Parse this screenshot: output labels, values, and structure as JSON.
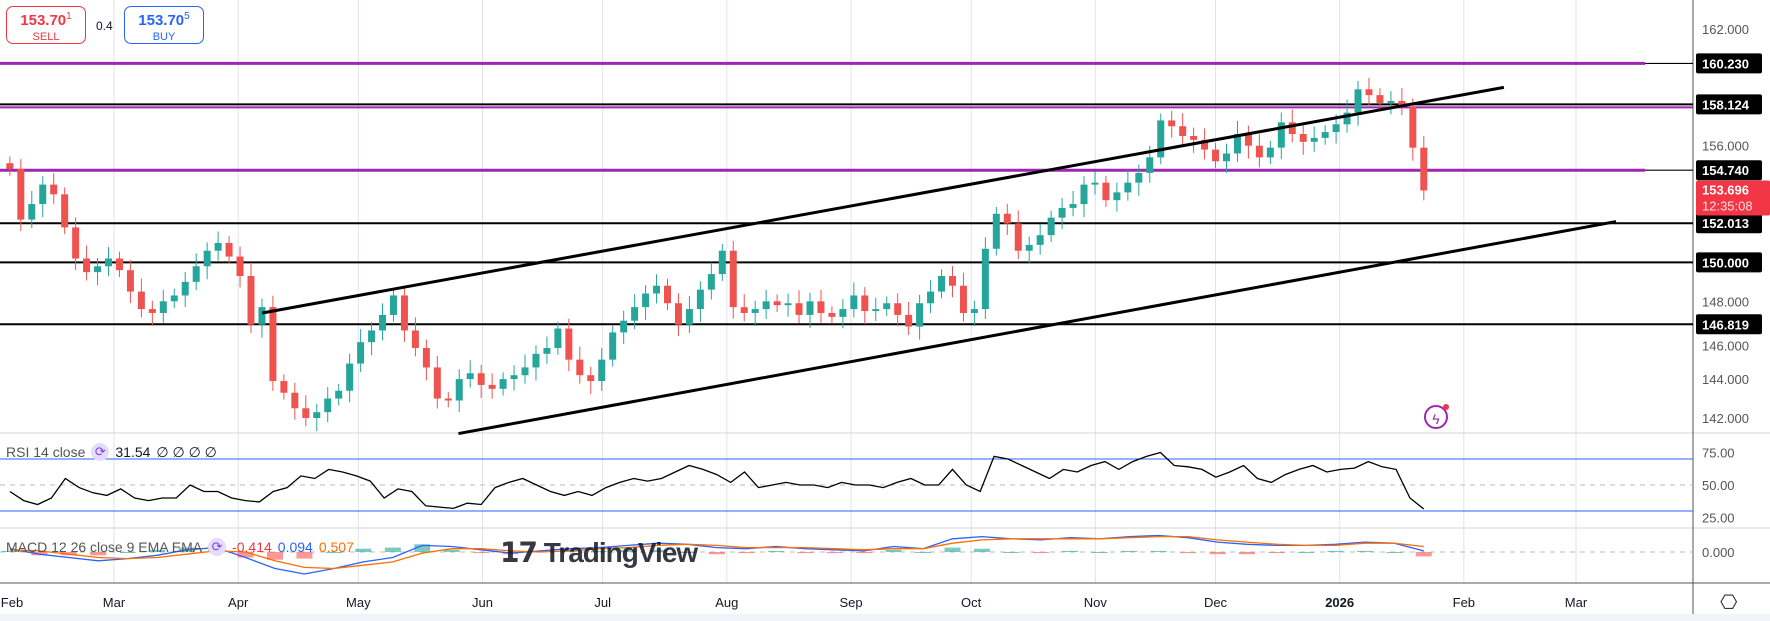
{
  "quote": {
    "sell_price": "153.70",
    "sell_sup": "1",
    "sell_label": "SELL",
    "spread": "0.4",
    "buy_price": "153.70",
    "buy_sup": "5",
    "buy_label": "BUY"
  },
  "rsi_legend": {
    "label": "RSI 14 close",
    "value": "31.54",
    "extras": "∅ ∅ ∅ ∅"
  },
  "macd_legend": {
    "label": "MACD 12 26 close 9 EMA EMA",
    "hist": "-0.414",
    "macd": "0.094",
    "signal": "0.507"
  },
  "logo": "TradingView",
  "colors": {
    "up": "#26a69a",
    "down": "#ef5350",
    "level_purple": "#9c27b0",
    "rsi_band": "#2962ff",
    "macd": "#2962ff",
    "signal": "#ff6d00",
    "last_price": "#f23645"
  },
  "chart_data": {
    "type": "candlestick",
    "date_range": [
      "2025-02-03",
      "2026-01-22"
    ],
    "price_axis": {
      "ticks": [
        "162.000",
        "156.000",
        "148.000",
        "146.000",
        "144.000",
        "142.000"
      ],
      "range": [
        141,
        163
      ]
    },
    "time_axis": [
      {
        "label": "Feb",
        "date": "2025-02-01"
      },
      {
        "label": "Mar",
        "date": "2025-03-01"
      },
      {
        "label": "Apr",
        "date": "2025-04-01"
      },
      {
        "label": "May",
        "date": "2025-05-01"
      },
      {
        "label": "Jun",
        "date": "2025-06-01"
      },
      {
        "label": "Jul",
        "date": "2025-07-01"
      },
      {
        "label": "Aug",
        "date": "2025-08-01"
      },
      {
        "label": "Sep",
        "date": "2025-09-01"
      },
      {
        "label": "Oct",
        "date": "2025-10-01"
      },
      {
        "label": "Nov",
        "date": "2025-11-01"
      },
      {
        "label": "Dec",
        "date": "2025-12-01"
      },
      {
        "label": "2026",
        "date": "2026-01-01",
        "bold": true
      },
      {
        "label": "Feb",
        "date": "2026-02-01"
      },
      {
        "label": "Mar",
        "date": "2026-03-01"
      }
    ],
    "closes": [
      154.8,
      152.2,
      153.0,
      154.0,
      153.5,
      151.8,
      150.2,
      149.5,
      149.8,
      150.2,
      149.6,
      148.5,
      147.6,
      147.4,
      148.0,
      148.3,
      149.0,
      149.8,
      150.6,
      151.0,
      150.3,
      149.3,
      146.8,
      147.7,
      143.9,
      143.3,
      142.5,
      142.0,
      142.3,
      143.0,
      143.4,
      144.8,
      145.9,
      146.5,
      147.3,
      148.3,
      146.5,
      145.6,
      144.6,
      143.0,
      142.9,
      144.0,
      144.3,
      143.7,
      143.5,
      144.0,
      144.2,
      144.6,
      145.3,
      145.6,
      146.6,
      145.0,
      144.2,
      143.9,
      145.0,
      146.4,
      147.0,
      147.7,
      148.4,
      148.8,
      147.9,
      146.8,
      147.6,
      148.6,
      149.4,
      150.6,
      147.7,
      147.4,
      147.6,
      148.0,
      147.8,
      147.9,
      147.3,
      148.0,
      147.4,
      147.2,
      147.6,
      148.3,
      147.5,
      147.6,
      147.9,
      147.3,
      146.7,
      147.9,
      148.5,
      149.3,
      148.8,
      147.4,
      147.6,
      150.7,
      152.5,
      152.0,
      150.6,
      150.9,
      151.4,
      152.3,
      152.8,
      153.0,
      154.0,
      154.1,
      153.2,
      153.6,
      154.1,
      154.6,
      155.4,
      157.3,
      157.0,
      156.5,
      156.3,
      155.8,
      155.2,
      155.6,
      156.6,
      156.0,
      155.4,
      155.9,
      157.2,
      156.6,
      156.2,
      156.4,
      156.7,
      157.1,
      157.7,
      158.9,
      158.6,
      158.2,
      158.3,
      158.0,
      155.9,
      153.7
    ],
    "last_price": {
      "value": "153.696",
      "countdown": "12:35:08"
    },
    "levels": [
      {
        "value": 160.23,
        "label": "160.230",
        "color": "#9c27b0"
      },
      {
        "value": 158.124,
        "label": "158.124",
        "color": "#000000"
      },
      {
        "value": 154.74,
        "label": "154.740",
        "color": "#9c27b0"
      },
      {
        "value": 152.013,
        "label": "152.013",
        "color": "#000000"
      },
      {
        "value": 150.0,
        "label": "150.000",
        "color": "#000000"
      },
      {
        "value": 146.819,
        "label": "146.819",
        "color": "#000000"
      }
    ],
    "trendlines": [
      {
        "from": [
          "2025-04-07",
          147.4
        ],
        "to": [
          "2026-02-11",
          159.0
        ]
      },
      {
        "from": [
          "2025-05-26",
          141.2
        ],
        "to": [
          "2026-03-11",
          152.1
        ]
      }
    ],
    "rsi": {
      "ticks": [
        "75.00",
        "50.00",
        "25.00"
      ],
      "bands": [
        70,
        30
      ],
      "values": [
        45,
        38,
        35,
        40,
        55,
        48,
        44,
        42,
        47,
        40,
        38,
        40,
        40,
        50,
        45,
        45,
        40,
        38,
        37,
        45,
        48,
        57,
        55,
        62,
        60,
        57,
        53,
        40,
        47,
        45,
        34,
        33,
        32,
        36,
        35,
        48,
        52,
        55,
        50,
        45,
        42,
        45,
        42,
        48,
        52,
        55,
        53,
        55,
        60,
        65,
        62,
        58,
        52,
        60,
        48,
        50,
        52,
        50,
        50,
        48,
        52,
        50,
        50,
        48,
        52,
        55,
        50,
        50,
        62,
        50,
        45,
        72,
        70,
        65,
        60,
        55,
        62,
        60,
        65,
        68,
        62,
        68,
        72,
        75,
        65,
        64,
        62,
        56,
        60,
        65,
        55,
        52,
        58,
        62,
        65,
        60,
        62,
        63,
        68,
        64,
        62,
        40,
        31.5
      ]
    },
    "macd": {
      "ticks": [
        "0.000"
      ],
      "macd": [
        0.3,
        -0.2,
        -0.5,
        -0.8,
        -0.6,
        -0.3,
        0.2,
        0.4,
        -0.5,
        -1.5,
        -2.0,
        -1.5,
        -0.9,
        -0.5,
        0.6,
        0.5,
        0.2,
        -0.1,
        0.1,
        0.3,
        0.4,
        0.6,
        0.8,
        0.7,
        0.4,
        0.3,
        0.5,
        0.3,
        0.2,
        0.1,
        0.5,
        0.3,
        1.2,
        1.4,
        1.2,
        1.1,
        1.3,
        1.2,
        1.4,
        1.5,
        1.3,
        0.9,
        0.7,
        0.6,
        0.6,
        0.7,
        0.9,
        0.8,
        0.1
      ],
      "signal": [
        0.2,
        0.1,
        -0.2,
        -0.5,
        -0.6,
        -0.5,
        -0.2,
        0.1,
        0.0,
        -0.8,
        -1.4,
        -1.5,
        -1.2,
        -0.9,
        -0.1,
        0.3,
        0.3,
        0.1,
        0.0,
        0.1,
        0.3,
        0.4,
        0.6,
        0.7,
        0.6,
        0.4,
        0.4,
        0.4,
        0.3,
        0.2,
        0.3,
        0.3,
        0.8,
        1.1,
        1.2,
        1.2,
        1.2,
        1.2,
        1.3,
        1.4,
        1.4,
        1.1,
        0.9,
        0.7,
        0.6,
        0.6,
        0.8,
        0.8,
        0.5
      ]
    }
  }
}
